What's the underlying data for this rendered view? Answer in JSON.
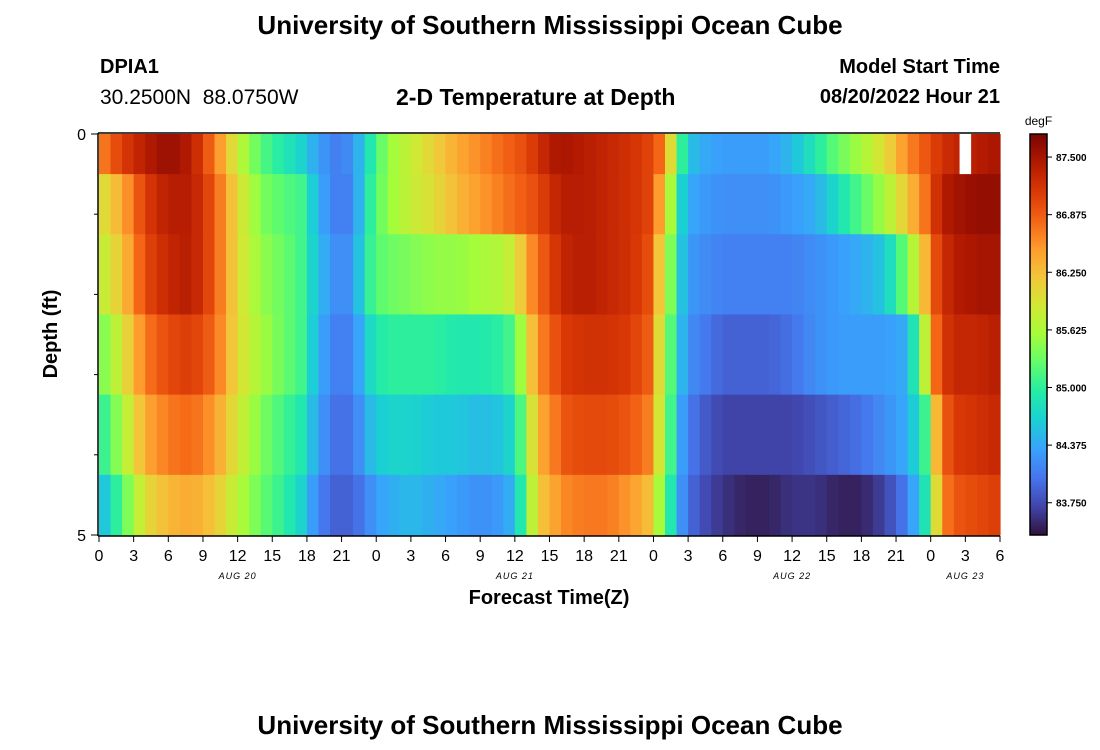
{
  "header": {
    "main_title": "University of Southern Mississippi Ocean Cube",
    "station_id": "DPIA1",
    "station_coords": "30.2500N  88.0750W",
    "chart_title": "2-D Temperature at Depth",
    "start_label": "Model Start Time",
    "start_value": "08/20/2022 Hour 21"
  },
  "footer": {
    "repeat_title": "University of Southern Mississippi Ocean Cube"
  },
  "chart_data": {
    "type": "heatmap",
    "title": "2-D Temperature at Depth",
    "xlabel": "Forecast Time(Z)",
    "ylabel": "Depth (ft)",
    "colorbar_unit": "degF",
    "colorbar_ticks": [
      "87.500",
      "86.875",
      "86.250",
      "85.625",
      "85.000",
      "84.375",
      "83.750"
    ],
    "colorbar_range": [
      83.4,
      87.75
    ],
    "colors": [
      "#30123b",
      "#4145ab",
      "#4675ed",
      "#39a2fc",
      "#1bcfd4",
      "#24eca6",
      "#61fc6c",
      "#a4fc3b",
      "#d1e834",
      "#f3c63a",
      "#fe9b2d",
      "#f36315",
      "#d93806",
      "#b11901",
      "#7a0403"
    ],
    "y_tick_labels": [
      "0",
      "5"
    ],
    "y_range_ft": [
      0,
      5
    ],
    "x_tick_labels": [
      "0",
      "3",
      "6",
      "9",
      "12",
      "15",
      "18",
      "21",
      "0",
      "3",
      "6",
      "9",
      "12",
      "15",
      "18",
      "21",
      "0",
      "3",
      "6",
      "9",
      "12",
      "15",
      "18",
      "21",
      "0",
      "3",
      "6"
    ],
    "date_labels": [
      "AUG 20",
      "AUG 21",
      "AUG 22",
      "AUG 23"
    ],
    "x_start_hours": 0,
    "x_end_hours": 78,
    "hour_step": 1,
    "depth_layers_ft": [
      0.25,
      0.75,
      1.75,
      2.75,
      3.75,
      4.75
    ],
    "time_knots_hours": [
      0,
      2,
      4,
      6,
      8,
      10,
      12,
      14,
      16,
      17.5,
      19,
      20.5,
      22,
      23,
      24,
      25,
      27,
      29,
      31,
      33,
      35,
      36,
      37,
      38,
      39,
      40,
      42,
      44,
      46,
      48,
      48.5,
      49.5,
      50,
      51,
      52,
      54,
      56,
      58,
      60,
      62,
      64,
      66,
      68,
      70,
      72,
      72.5,
      73,
      74,
      76,
      78
    ],
    "series": [
      {
        "depth_ft": 0.25,
        "values": [
          86.6,
          87.1,
          87.4,
          87.6,
          87.4,
          86.7,
          85.8,
          85.2,
          84.9,
          84.7,
          84.3,
          84.1,
          84.2,
          84.7,
          85.1,
          85.5,
          85.8,
          86.1,
          86.4,
          86.6,
          86.8,
          86.9,
          87.0,
          87.2,
          87.4,
          87.5,
          87.4,
          87.3,
          87.2,
          87.0,
          86.8,
          86.0,
          85.4,
          84.6,
          84.4,
          84.3,
          84.3,
          84.3,
          84.5,
          84.9,
          85.3,
          85.6,
          86.0,
          86.6,
          87.0,
          87.1,
          87.2,
          87.3,
          87.4,
          87.5
        ]
      },
      {
        "depth_ft": 0.75,
        "values": [
          85.9,
          86.4,
          87.1,
          87.4,
          87.4,
          86.9,
          86.0,
          85.4,
          85.2,
          85.1,
          84.4,
          84.1,
          84.1,
          84.8,
          85.2,
          85.5,
          85.8,
          86.0,
          86.3,
          86.5,
          86.7,
          86.8,
          86.9,
          87.0,
          87.2,
          87.4,
          87.4,
          87.3,
          87.2,
          87.0,
          86.5,
          85.6,
          84.9,
          84.4,
          84.3,
          84.2,
          84.2,
          84.2,
          84.3,
          84.4,
          84.8,
          85.2,
          85.6,
          86.2,
          86.9,
          87.2,
          87.4,
          87.5,
          87.6,
          87.6
        ]
      },
      {
        "depth_ft": 1.75,
        "values": [
          85.7,
          86.2,
          87.0,
          87.3,
          87.4,
          86.9,
          86.0,
          85.5,
          85.3,
          85.1,
          84.5,
          84.2,
          84.2,
          84.9,
          85.2,
          85.3,
          85.4,
          85.5,
          85.5,
          85.6,
          85.7,
          85.9,
          86.4,
          86.8,
          87.0,
          87.3,
          87.4,
          87.3,
          87.2,
          86.9,
          86.2,
          85.4,
          84.8,
          84.3,
          84.2,
          84.1,
          84.1,
          84.1,
          84.1,
          84.2,
          84.3,
          84.4,
          84.6,
          85.4,
          86.6,
          87.0,
          87.2,
          87.4,
          87.5,
          87.5
        ]
      },
      {
        "depth_ft": 2.75,
        "values": [
          85.3,
          85.9,
          86.7,
          87.0,
          87.1,
          86.8,
          86.0,
          85.6,
          85.3,
          85.1,
          84.4,
          84.1,
          84.1,
          84.6,
          84.9,
          85.0,
          85.0,
          85.0,
          84.9,
          84.9,
          85.0,
          85.2,
          85.9,
          86.6,
          86.8,
          87.1,
          87.2,
          87.2,
          87.1,
          86.8,
          86.0,
          85.2,
          84.7,
          84.2,
          84.1,
          83.9,
          83.9,
          83.9,
          84.0,
          84.2,
          84.3,
          84.3,
          84.3,
          84.4,
          86.2,
          86.8,
          87.1,
          87.3,
          87.3,
          87.4
        ]
      },
      {
        "depth_ft": 3.75,
        "values": [
          84.9,
          85.6,
          86.4,
          86.7,
          86.8,
          86.5,
          85.9,
          85.4,
          85.1,
          84.9,
          84.3,
          84.0,
          84.0,
          84.4,
          84.6,
          84.7,
          84.7,
          84.6,
          84.6,
          84.5,
          84.6,
          84.8,
          85.5,
          86.4,
          86.5,
          86.9,
          87.0,
          87.0,
          86.9,
          86.6,
          85.9,
          85.1,
          84.5,
          84.1,
          83.9,
          83.7,
          83.7,
          83.7,
          83.7,
          83.8,
          83.9,
          84.0,
          84.2,
          84.4,
          85.3,
          86.3,
          86.8,
          87.1,
          87.2,
          87.3
        ]
      },
      {
        "depth_ft": 4.75,
        "values": [
          84.4,
          85.2,
          86.0,
          86.3,
          86.4,
          86.2,
          85.7,
          85.3,
          85.0,
          84.7,
          84.1,
          83.9,
          83.9,
          84.1,
          84.3,
          84.4,
          84.5,
          84.4,
          84.3,
          84.2,
          84.3,
          84.5,
          85.3,
          86.2,
          86.3,
          86.6,
          86.7,
          86.7,
          86.5,
          86.2,
          85.6,
          84.9,
          84.4,
          84.0,
          83.8,
          83.6,
          83.5,
          83.5,
          83.6,
          83.6,
          83.5,
          83.5,
          83.7,
          84.1,
          85.1,
          86.0,
          86.6,
          86.9,
          87.0,
          87.1
        ]
      }
    ],
    "missing_cells": [
      {
        "hour_from": 74.5,
        "hour_to": 75.5,
        "depth_ft": 0.25
      }
    ]
  }
}
